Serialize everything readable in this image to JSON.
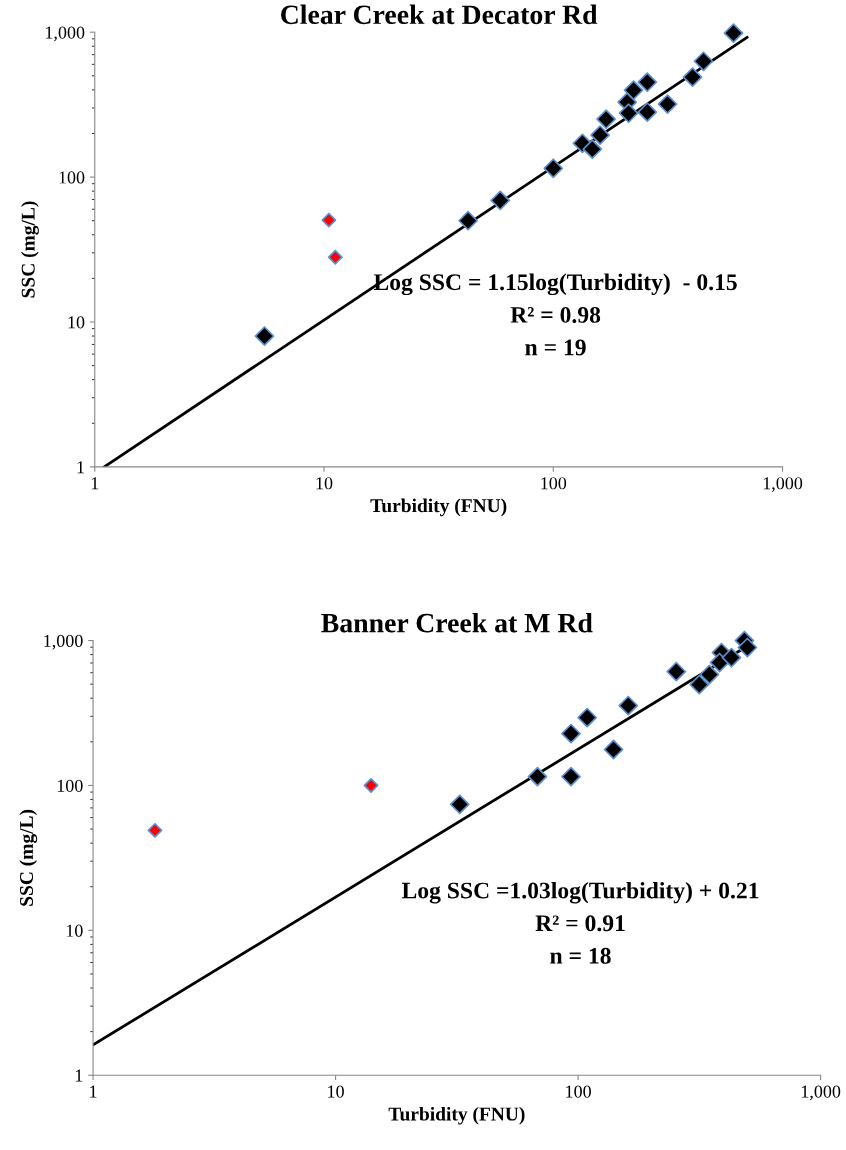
{
  "chart_data": [
    {
      "type": "scatter",
      "title": "Clear Creek at Decator Rd",
      "xlabel": "Turbidity (FNU)",
      "ylabel": "SSC (mg/L)",
      "log": "xy",
      "grid": false,
      "legend": false,
      "marker": "diamond",
      "xlim": [
        1,
        1000
      ],
      "ylim": [
        1,
        1000
      ],
      "xticks": [
        1,
        10,
        100,
        {
          "value": 1000,
          "label": "1,000"
        }
      ],
      "yticks": [
        1,
        10,
        100,
        {
          "value": 1000,
          "label": "1,000"
        }
      ],
      "series": [
        {
          "color": "#000000",
          "x": [
            5.5,
            42.5,
            58.7,
            100,
            134,
            148,
            160,
            170,
            210,
            213,
            224,
            257,
            257,
            315,
            405,
            452,
            611
          ],
          "values": [
            8,
            50,
            69,
            115,
            171,
            156,
            195,
            251,
            329,
            276,
            398,
            281,
            452,
            319,
            490,
            630,
            985
          ]
        },
        {
          "color": "#ff0000",
          "x": [
            10.5,
            11.2
          ],
          "values": [
            50.5,
            28
          ]
        },
        {
          "type": "line",
          "color": "#000000",
          "marker": "none",
          "line_style": "solid",
          "x": [
            1.1,
            700
          ],
          "values": [
            1.0,
            920
          ]
        }
      ],
      "annotations": [
        "Log SSC = 1.15log(Turbidity)  - 0.15",
        "R² = 0.98",
        "n = 19"
      ]
    },
    {
      "type": "scatter",
      "title": "Banner Creek at M Rd",
      "xlabel": "Turbidity (FNU)",
      "ylabel": "SSC (mg/L)",
      "log": "xy",
      "grid": false,
      "legend": false,
      "marker": "diamond",
      "xlim": [
        1,
        1000
      ],
      "ylim": [
        1,
        1000
      ],
      "xticks": [
        1,
        10,
        100,
        {
          "value": 1000,
          "label": "1,000"
        }
      ],
      "yticks": [
        1,
        10,
        100,
        {
          "value": 1000,
          "label": "1,000"
        }
      ],
      "series": [
        {
          "color": "#000000",
          "x": [
            32.5,
            68,
            93.5,
            93.5,
            109,
            140,
            161,
            254,
            316,
            348,
            390,
            383,
            429,
            485,
            499
          ],
          "values": [
            74,
            115,
            115,
            228,
            294,
            177,
            356,
            611,
            497,
            583,
            826,
            705,
            763,
            1000,
            895
          ]
        },
        {
          "color": "#ff0000",
          "x": [
            1.8,
            14
          ],
          "values": [
            49,
            100
          ]
        },
        {
          "type": "line",
          "color": "#000000",
          "marker": "none",
          "line_style": "solid",
          "x": [
            1,
            490
          ],
          "values": [
            1.62,
            900
          ]
        }
      ],
      "annotations": [
        "Log SSC =1.03log(Turbidity) + 0.21",
        "R² = 0.91",
        "n = 18"
      ]
    }
  ]
}
